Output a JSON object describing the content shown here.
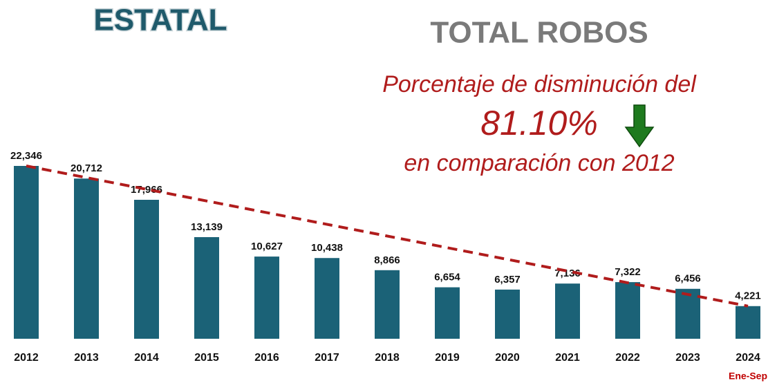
{
  "chart_data": {
    "type": "bar",
    "heading": "ESTATAL",
    "title": "TOTAL ROBOS",
    "annotations": [
      "Porcentaje de disminución del",
      "81.10%",
      "en comparación con 2012"
    ],
    "categories": [
      "2012",
      "2013",
      "2014",
      "2015",
      "2016",
      "2017",
      "2018",
      "2019",
      "2020",
      "2021",
      "2022",
      "2023",
      "2024"
    ],
    "category_note": "Ene-Sep",
    "values": [
      22346,
      20712,
      17966,
      13139,
      10627,
      10438,
      8866,
      6654,
      6357,
      7136,
      7322,
      6456,
      4221
    ],
    "value_labels": [
      "22,346",
      "20,712",
      "17,966",
      "13,139",
      "10,627",
      "10,438",
      "8,866",
      "6,654",
      "6,357",
      "7,136",
      "7,322",
      "6,456",
      "4,221"
    ],
    "color": "#1b6277",
    "trend_color": "#b01c1c"
  }
}
